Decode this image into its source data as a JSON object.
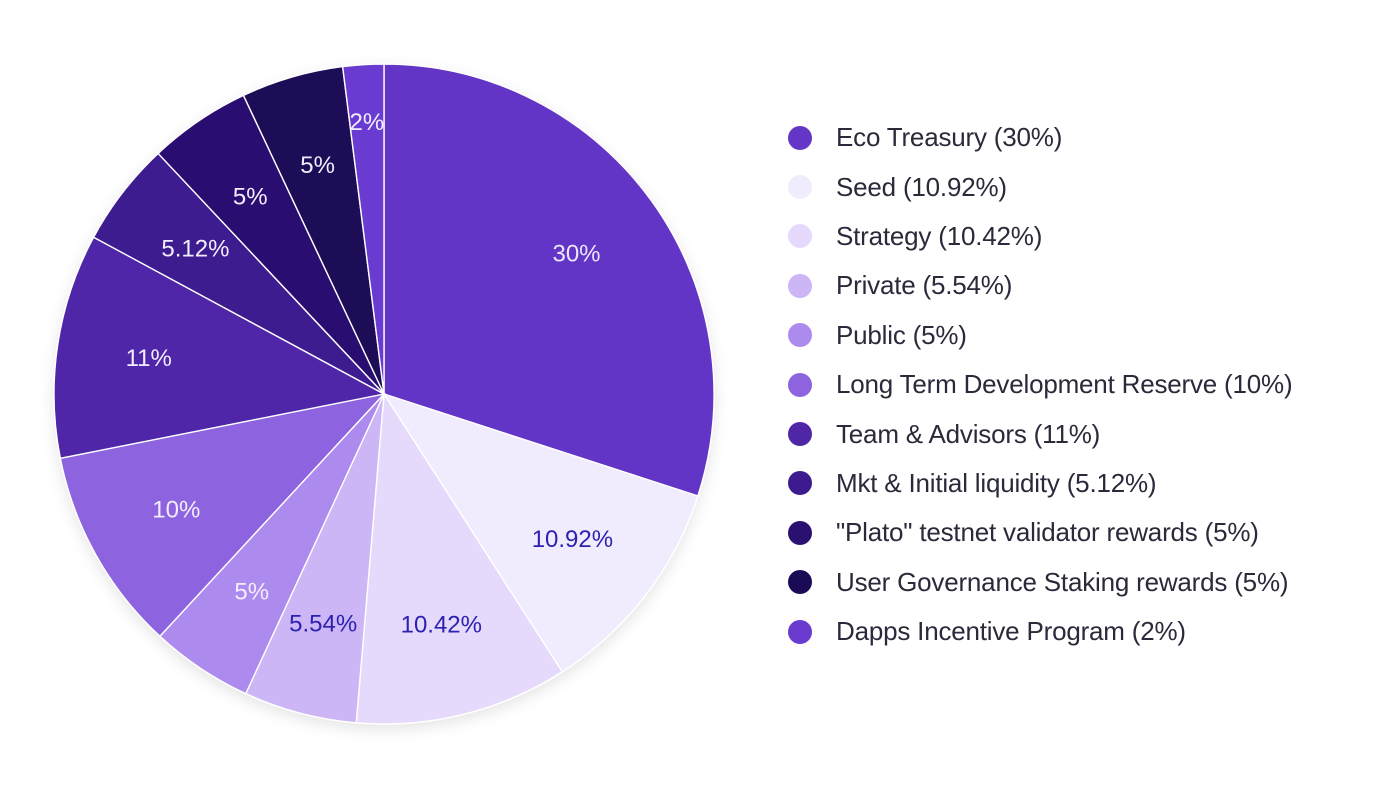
{
  "chart_data": {
    "type": "pie",
    "slices": [
      {
        "name": "Eco Treasury",
        "value": 30,
        "label": "30%",
        "legend": "Eco Treasury (30%)",
        "color": "#6436c6",
        "label_color": "#ece6fb"
      },
      {
        "name": "Seed",
        "value": 10.92,
        "label": "10.92%",
        "legend": "Seed (10.92%)",
        "color": "#f0ecfd",
        "label_color": "#2d22b0"
      },
      {
        "name": "Strategy",
        "value": 10.42,
        "label": "10.42%",
        "legend": "Strategy (10.42%)",
        "color": "#e5dafb",
        "label_color": "#2d22b0"
      },
      {
        "name": "Private",
        "value": 5.54,
        "label": "5.54%",
        "legend": "Private (5.54%)",
        "color": "#ccb6f6",
        "label_color": "#2d22b0"
      },
      {
        "name": "Public",
        "value": 5,
        "label": "5%",
        "legend": "Public (5%)",
        "color": "#ad8aed",
        "label_color": "#f3eefd"
      },
      {
        "name": "Long Term Development Reserve",
        "value": 10,
        "label": "10%",
        "legend": "Long Term Development Reserve (10%)",
        "color": "#8d63e0",
        "label_color": "#f3eefd"
      },
      {
        "name": "Team & Advisors",
        "value": 11,
        "label": "11%",
        "legend": "Team & Advisors (11%)",
        "color": "#4f26a8",
        "label_color": "#f3eefd"
      },
      {
        "name": "Mkt & Initial liquidity",
        "value": 5.12,
        "label": "5.12%",
        "legend": "Mkt & Initial liquidity (5.12%)",
        "color": "#3c1a8f",
        "label_color": "#f3eefd"
      },
      {
        "name": "\"Plato\" testnet validator rewards",
        "value": 5,
        "label": "5%",
        "legend": "\"Plato\" testnet validator rewards (5%)",
        "color": "#2a1171",
        "label_color": "#f3eefd"
      },
      {
        "name": "User Governance Staking rewards",
        "value": 5,
        "label": "5%",
        "legend": "User Governance Staking rewards (5%)",
        "color": "#1b0a56",
        "label_color": "#f3eefd"
      },
      {
        "name": "Dapps Incentive Program",
        "value": 2,
        "label": "2%",
        "legend": "Dapps Incentive Program (2%)",
        "color": "#6a3bd0",
        "label_color": "#f3eefd"
      }
    ],
    "start_angle_deg": 0,
    "direction": "clockwise",
    "legend_position": "right"
  }
}
